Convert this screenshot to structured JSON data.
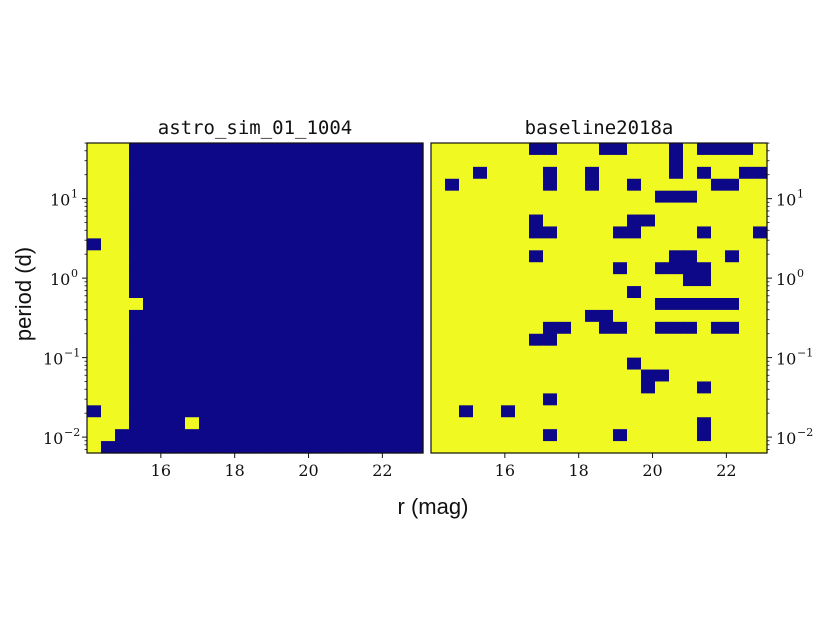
{
  "chart_data": {
    "type": "heatmap",
    "xlabel": "r (mag)",
    "ylabel": "period (d)",
    "xlim": [
      14.0,
      23.1
    ],
    "ylim_log10": [
      -2.2,
      1.7
    ],
    "x_ticks": [
      16,
      18,
      20,
      22
    ],
    "y_ticks": [
      {
        "base": "10",
        "exp": "−2",
        "log": -2
      },
      {
        "base": "10",
        "exp": "−1",
        "log": -1
      },
      {
        "base": "10",
        "exp": "0",
        "log": 0
      },
      {
        "base": "10",
        "exp": "1",
        "log": 1
      }
    ],
    "colors": {
      "detected": "#f0f921",
      "not_detected": "#0d0887"
    },
    "grid": false,
    "panels": [
      {
        "title": "astro_sim_01_1004",
        "y_axis_side": "left",
        "grid": [
          "YYY000000000000000000000",
          "YYY000000000000000000000",
          "YYY000000000000000000000",
          "YYY000000000000000000000",
          "YYY000000000000000000000",
          "YYY000000000000000000000",
          "YYY000000000000000000000",
          "YYY000000000000000000000",
          "0YY000000000000000000000",
          "YYY000000000000000000000",
          "YYY000000000000000000000",
          "YYY000000000000000000000",
          "YYY000000000000000000000",
          "YYYY00000000000000000000",
          "YYY000000000000000000000",
          "YYY000000000000000000000",
          "YYY000000000000000000000",
          "YYY000000000000000000000",
          "YYY000000000000000000000",
          "YYY000000000000000000000",
          "YYY000000000000000000000",
          "YYY000000000000000000000",
          "0YY000000000000000000000",
          "YYY0000Y0000000000000000",
          "YY0000000000000000000000",
          "Y00000000000000000000000"
        ]
      },
      {
        "title": "baseline2018a",
        "y_axis_side": "right",
        "grid": [
          "YYYYYYY00YYY00YYY0Y0000Y",
          "YYYYYYYYYYYYYYYYY0YYYYYY",
          "YYY0YYYY0YY0YYYYY0Y0YY00",
          "Y0YYYYYY0YY0YY0YYYYY00YY",
          "YYYYYYYYYYYYYYYY000YYYYY",
          "YYYYYYYYYYYYYYYYYYYYYYYY",
          "YYYYYYY0YYYYYY00YYYYYYYY",
          "YYYYYYY00YYYY00YYYY0YYY0",
          "YYYYYYYYYYYYYYYYYYYYYYYY",
          "YYYYYYY0YYYYYYYYY00YY0YY",
          "YYYYYYYYYYYYY0YY0000YYYY",
          "YYYYYYYYYYYYYYYYYY00YYYY",
          "YYYYYYYYYYYYYY0YYYYYYYYY",
          "YYYYYYYYYYYYYYYY000000YY",
          "YYYYYYYYYYY00YYYYYYYYYYY",
          "YYYYYYYY00YY00YY000Y00YY",
          "YYYYYYY00YYYYYYYYYYYYYYY",
          "YYYYYYYYYYYYYYYYYYYYYYYY",
          "YYYYYYYYYYYYYY0YYYYYYYYY",
          "YYYYYYYYYYYYYYY00YYYYYYY",
          "YYYYYYYYYYYYYYY0YYY0YYYY",
          "YYYYYYYY0YYYYYYYYYYYYYYY",
          "YY0YY0YYYYYYYYYYYYYYYYYY",
          "YYYYYYYYYYYYYYYYYYY0YYYY",
          "YYYYYYYY0YYYY0YYYYY0YYYY",
          "YYYYYYYYYYYYYYYYYYYYYYYY"
        ]
      }
    ]
  }
}
